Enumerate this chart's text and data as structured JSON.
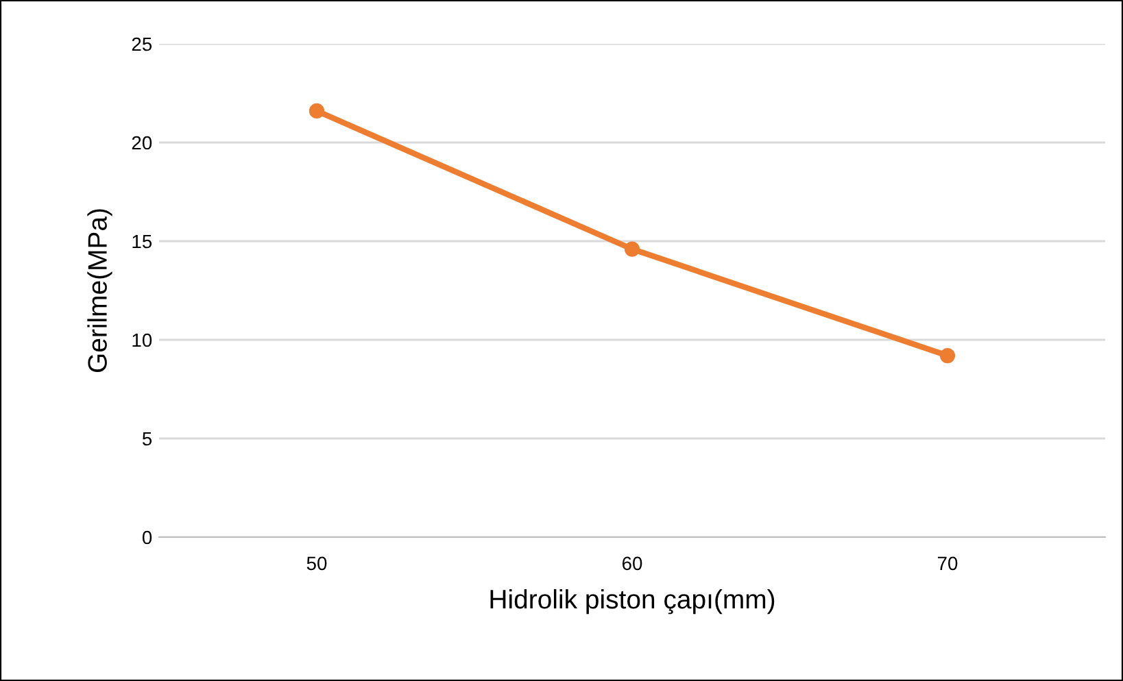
{
  "chart_data": {
    "type": "line",
    "xlabel": "Hidrolik piston çapı(mm)",
    "ylabel": "Gerilme(MPa)",
    "categories": [
      "50",
      "60",
      "70"
    ],
    "series": [
      {
        "color": "#ed7d31",
        "values": [
          21.6,
          14.6,
          9.2
        ]
      }
    ],
    "ylim": [
      0,
      25
    ],
    "yticks": [
      0,
      5,
      10,
      15,
      20,
      25
    ],
    "grid": "y",
    "marker": "circle",
    "line_style": "solid"
  }
}
